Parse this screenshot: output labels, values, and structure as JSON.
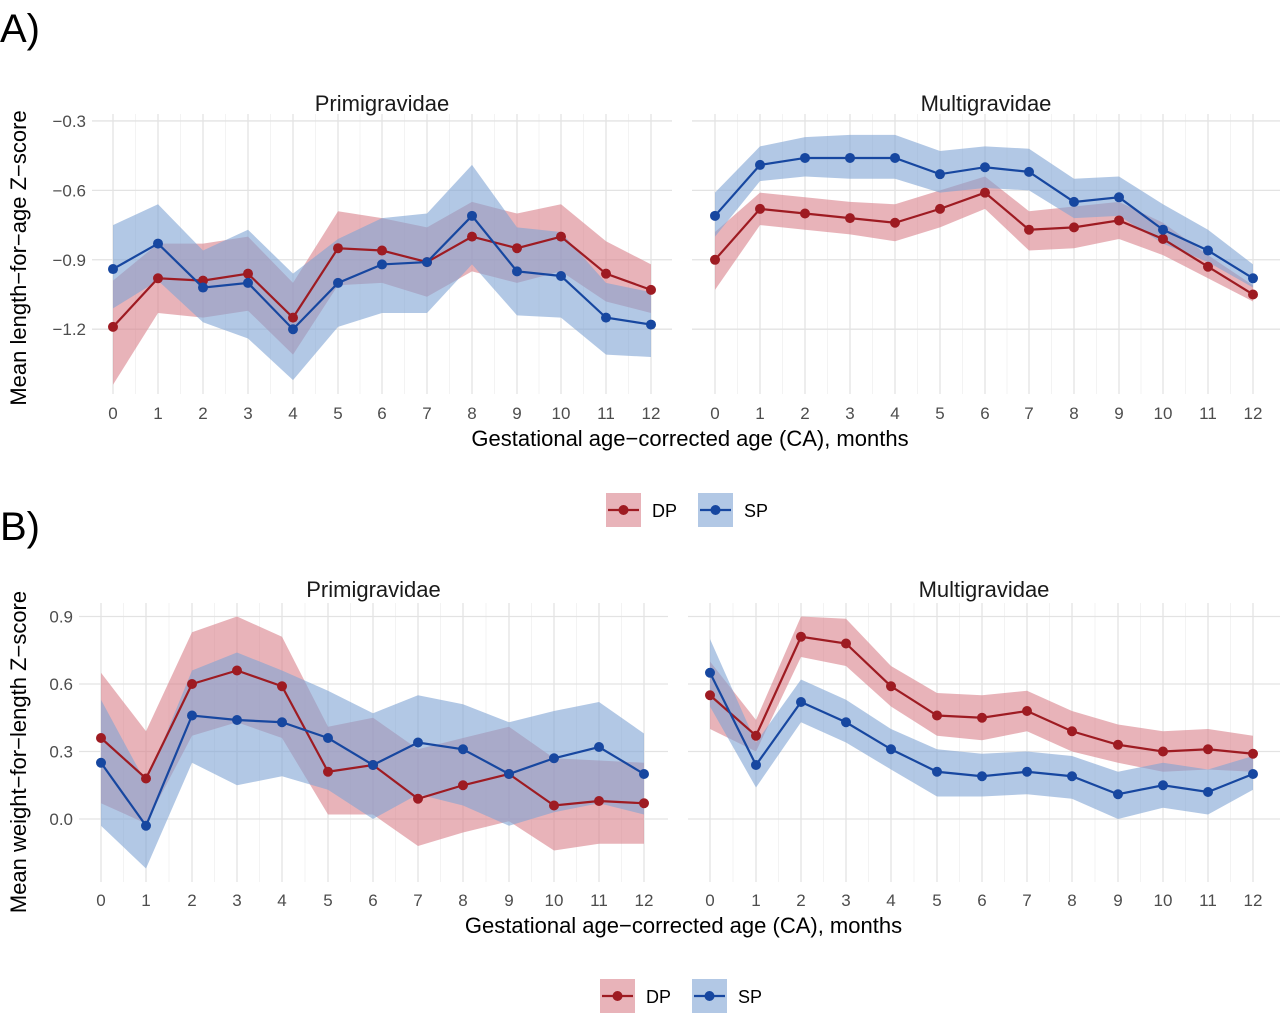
{
  "figure": {
    "colors": {
      "DP": "#9e1b22",
      "SP": "#1747a0",
      "DP_band": "#d9818a",
      "SP_band": "#7ea3d4"
    }
  },
  "chart_data": [
    {
      "type": "line",
      "panel_label": "A)",
      "ylabel": "Mean length−for−age Z−score",
      "xlabel": "Gestational age−corrected age (CA), months",
      "x": [
        0,
        1,
        2,
        3,
        4,
        5,
        6,
        7,
        8,
        9,
        10,
        11,
        12
      ],
      "xlim": [
        -0.5,
        12.5
      ],
      "ylim": [
        -1.48,
        -0.27
      ],
      "yticks": [
        -0.3,
        -0.6,
        -0.9,
        -1.2
      ],
      "ytick_labels": [
        "−0.3",
        "−0.6",
        "−0.9",
        "−1.2"
      ],
      "grid": true,
      "legend_position": "bottom",
      "legend": [
        "DP",
        "SP"
      ],
      "facets": [
        {
          "title": "Primigravidae",
          "series": [
            {
              "name": "DP",
              "values": [
                -1.19,
                -0.98,
                -0.99,
                -0.96,
                -1.15,
                -0.85,
                -0.86,
                -0.91,
                -0.8,
                -0.85,
                -0.8,
                -0.96,
                -1.03
              ],
              "lower": [
                -1.44,
                -1.13,
                -1.15,
                -1.12,
                -1.31,
                -1.01,
                -1.0,
                -1.06,
                -0.95,
                -1.0,
                -0.95,
                -1.08,
                -1.13
              ],
              "upper": [
                -0.99,
                -0.83,
                -0.83,
                -0.8,
                -1.0,
                -0.69,
                -0.72,
                -0.76,
                -0.65,
                -0.7,
                -0.66,
                -0.82,
                -0.92
              ]
            },
            {
              "name": "SP",
              "values": [
                -0.94,
                -0.83,
                -1.02,
                -1.0,
                -1.2,
                -1.0,
                -0.92,
                -0.91,
                -0.71,
                -0.95,
                -0.97,
                -1.15,
                -1.18
              ],
              "lower": [
                -1.11,
                -0.99,
                -1.17,
                -1.24,
                -1.42,
                -1.19,
                -1.13,
                -1.13,
                -0.92,
                -1.14,
                -1.15,
                -1.31,
                -1.32
              ],
              "upper": [
                -0.75,
                -0.66,
                -0.86,
                -0.77,
                -0.96,
                -0.81,
                -0.72,
                -0.7,
                -0.49,
                -0.76,
                -0.78,
                -1.0,
                -1.04
              ]
            }
          ]
        },
        {
          "title": "Multigravidae",
          "series": [
            {
              "name": "DP",
              "values": [
                -0.9,
                -0.68,
                -0.7,
                -0.72,
                -0.74,
                -0.68,
                -0.61,
                -0.77,
                -0.76,
                -0.73,
                -0.81,
                -0.93,
                -1.05
              ],
              "lower": [
                -1.03,
                -0.75,
                -0.77,
                -0.79,
                -0.82,
                -0.76,
                -0.68,
                -0.86,
                -0.85,
                -0.81,
                -0.88,
                -0.98,
                -1.08
              ],
              "upper": [
                -0.78,
                -0.61,
                -0.63,
                -0.65,
                -0.66,
                -0.6,
                -0.54,
                -0.69,
                -0.67,
                -0.65,
                -0.74,
                -0.88,
                -1.01
              ]
            },
            {
              "name": "SP",
              "values": [
                -0.71,
                -0.49,
                -0.46,
                -0.46,
                -0.46,
                -0.53,
                -0.5,
                -0.52,
                -0.65,
                -0.63,
                -0.77,
                -0.86,
                -0.98
              ],
              "lower": [
                -0.8,
                -0.56,
                -0.54,
                -0.55,
                -0.55,
                -0.61,
                -0.59,
                -0.6,
                -0.72,
                -0.71,
                -0.83,
                -0.91,
                -1.02
              ],
              "upper": [
                -0.61,
                -0.41,
                -0.37,
                -0.36,
                -0.36,
                -0.43,
                -0.41,
                -0.42,
                -0.55,
                -0.54,
                -0.66,
                -0.77,
                -0.92
              ]
            }
          ]
        }
      ]
    },
    {
      "type": "line",
      "panel_label": "B)",
      "ylabel": "Mean weight−for−length Z−score",
      "xlabel": "Gestational age−corrected age (CA), months",
      "x": [
        0,
        1,
        2,
        3,
        4,
        5,
        6,
        7,
        8,
        9,
        10,
        11,
        12
      ],
      "xlim": [
        -0.5,
        12.5
      ],
      "ylim": [
        -0.28,
        0.96
      ],
      "yticks": [
        0.9,
        0.6,
        0.3,
        0.0
      ],
      "ytick_labels": [
        "0.9",
        "0.6",
        "0.3",
        "0.0"
      ],
      "grid": true,
      "legend_position": "bottom",
      "legend": [
        "DP",
        "SP"
      ],
      "facets": [
        {
          "title": "Primigravidae",
          "series": [
            {
              "name": "DP",
              "values": [
                0.36,
                0.18,
                0.6,
                0.66,
                0.59,
                0.21,
                0.24,
                0.09,
                0.15,
                0.2,
                0.06,
                0.08,
                0.07
              ],
              "lower": [
                0.07,
                -0.02,
                0.37,
                0.43,
                0.36,
                0.02,
                0.02,
                -0.12,
                -0.06,
                -0.01,
                -0.14,
                -0.11,
                -0.11
              ],
              "upper": [
                0.65,
                0.39,
                0.83,
                0.9,
                0.81,
                0.41,
                0.45,
                0.31,
                0.36,
                0.41,
                0.27,
                0.26,
                0.25
              ]
            },
            {
              "name": "SP",
              "values": [
                0.25,
                -0.03,
                0.46,
                0.44,
                0.43,
                0.36,
                0.24,
                0.34,
                0.31,
                0.2,
                0.27,
                0.32,
                0.2
              ],
              "lower": [
                -0.03,
                -0.22,
                0.25,
                0.15,
                0.19,
                0.13,
                0.0,
                0.11,
                0.06,
                -0.03,
                0.03,
                0.07,
                0.02
              ],
              "upper": [
                0.53,
                0.16,
                0.66,
                0.74,
                0.66,
                0.57,
                0.47,
                0.55,
                0.51,
                0.43,
                0.48,
                0.52,
                0.38
              ]
            }
          ]
        },
        {
          "title": "Multigravidae",
          "series": [
            {
              "name": "DP",
              "values": [
                0.55,
                0.37,
                0.81,
                0.78,
                0.59,
                0.46,
                0.45,
                0.48,
                0.39,
                0.33,
                0.3,
                0.31,
                0.29
              ],
              "lower": [
                0.4,
                0.3,
                0.72,
                0.68,
                0.5,
                0.37,
                0.35,
                0.39,
                0.3,
                0.25,
                0.21,
                0.22,
                0.21
              ],
              "upper": [
                0.7,
                0.44,
                0.9,
                0.89,
                0.68,
                0.56,
                0.55,
                0.57,
                0.48,
                0.42,
                0.39,
                0.4,
                0.37
              ]
            },
            {
              "name": "SP",
              "values": [
                0.65,
                0.24,
                0.52,
                0.43,
                0.31,
                0.21,
                0.19,
                0.21,
                0.19,
                0.11,
                0.15,
                0.12,
                0.2
              ],
              "lower": [
                0.5,
                0.14,
                0.43,
                0.34,
                0.22,
                0.1,
                0.1,
                0.11,
                0.09,
                0.0,
                0.05,
                0.02,
                0.13
              ],
              "upper": [
                0.8,
                0.34,
                0.62,
                0.53,
                0.4,
                0.31,
                0.29,
                0.3,
                0.28,
                0.21,
                0.25,
                0.22,
                0.28
              ]
            }
          ]
        }
      ]
    }
  ]
}
